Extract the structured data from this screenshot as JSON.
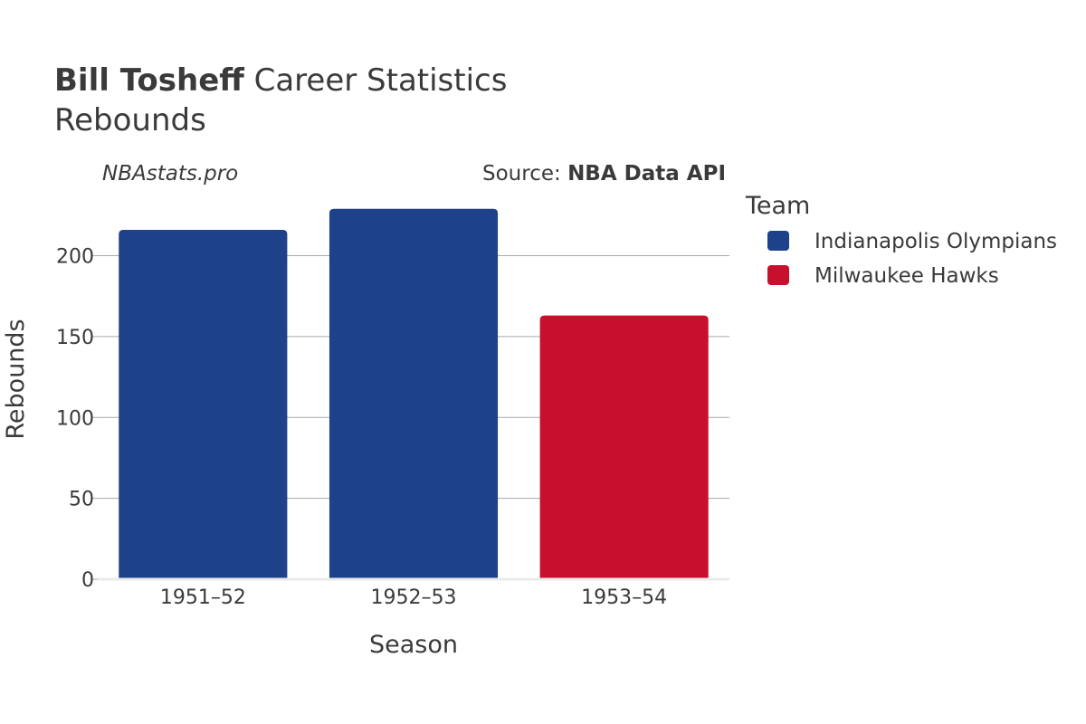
{
  "header": {
    "title_bold": "Bill Tosheff",
    "title_rest": " Career Statistics",
    "subtitle": "Rebounds"
  },
  "watermark": "NBAstats.pro",
  "source": {
    "prefix": "Source: ",
    "name": "NBA Data API"
  },
  "legend": {
    "title": "Team",
    "placement": "right"
  },
  "chart_data": {
    "type": "bar",
    "categories": [
      "1951–52",
      "1952–53",
      "1953–54"
    ],
    "values": [
      216,
      229,
      163
    ],
    "bar_teams": [
      "Indianapolis Olympians",
      "Indianapolis Olympians",
      "Milwaukee Hawks"
    ],
    "series": [
      {
        "name": "Indianapolis Olympians",
        "color": "#1d428a"
      },
      {
        "name": "Milwaukee Hawks",
        "color": "#c8102e"
      }
    ],
    "title": "Bill Tosheff Career Statistics",
    "xlabel": "Season",
    "ylabel": "Rebounds",
    "ylim": [
      0,
      235
    ],
    "yticks": [
      0,
      50,
      100,
      150,
      200
    ],
    "grid": true
  }
}
